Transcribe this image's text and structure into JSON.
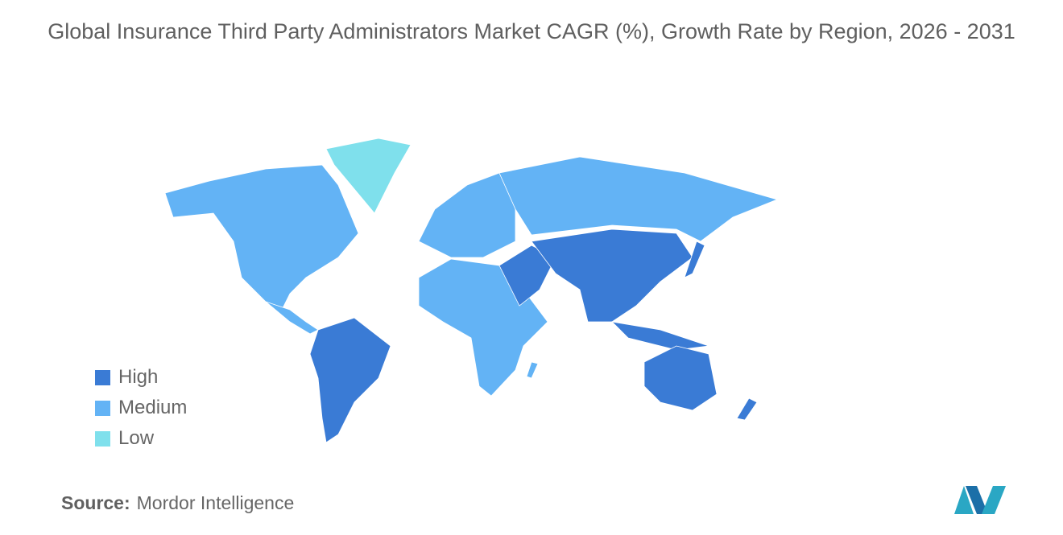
{
  "title": "Global Insurance Third Party Administrators Market CAGR (%), Growth Rate by Region, 2026 - 2031",
  "legend": [
    {
      "label": "High",
      "color": "#3a7bd5"
    },
    {
      "label": "Medium",
      "color": "#63b3f5"
    },
    {
      "label": "Low",
      "color": "#7fe0ec"
    }
  ],
  "source": {
    "label": "Source:",
    "text": "Mordor Intelligence"
  }
}
